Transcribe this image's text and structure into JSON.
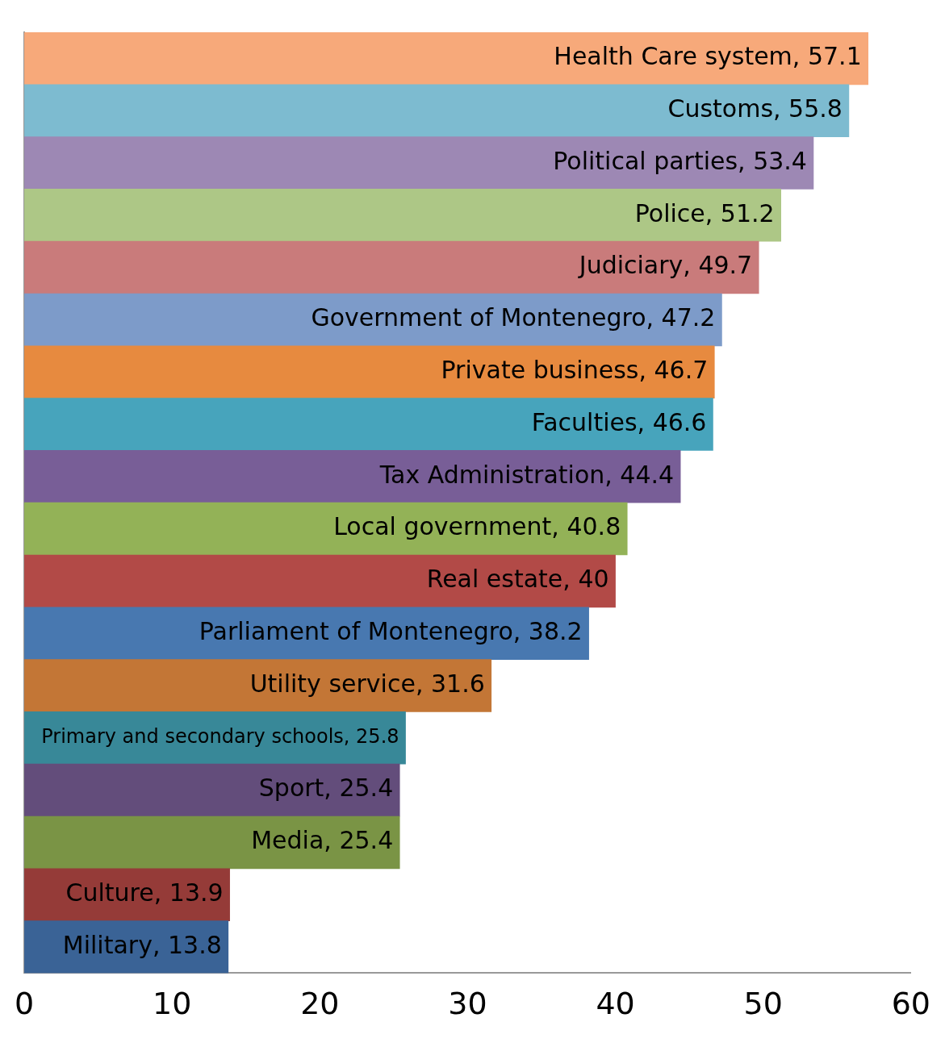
{
  "chart_data": {
    "type": "bar",
    "orientation": "horizontal",
    "categories": [
      "Health Care system",
      "Customs",
      "Political parties",
      "Police",
      "Judiciary",
      "Government of Montenegro",
      "Private business",
      "Faculties",
      "Tax Administration",
      "Local government",
      "Real estate",
      "Parliament of Montenegro",
      "Utility service",
      "Primary and secondary schools",
      "Sport",
      "Media",
      "Culture",
      "Military"
    ],
    "values": [
      57.1,
      55.8,
      53.4,
      51.2,
      49.7,
      47.2,
      46.7,
      46.6,
      44.4,
      40.8,
      40,
      38.2,
      31.6,
      25.8,
      25.4,
      25.4,
      13.9,
      13.8
    ],
    "value_labels": [
      ", 57.1",
      ", 55.8",
      ", 53.4",
      ", 51.2",
      ", 49.7",
      ", 47.2",
      ", 46.7",
      ", 46.6",
      ", 44.4",
      ", 40.8",
      ", 40",
      ", 38.2",
      ", 31.6",
      ", 25.8",
      ", 25.4",
      ", 25.4",
      ", 13.9",
      ", 13.8"
    ],
    "colors": [
      "#f7a97a",
      "#7dbbd0",
      "#9d88b4",
      "#adc786",
      "#c97b7b",
      "#7d9bc9",
      "#e78a3f",
      "#47a4bc",
      "#785e97",
      "#93b257",
      "#b24a47",
      "#4878b0",
      "#c37636",
      "#388898",
      "#634d7b",
      "#7a9445",
      "#953b38",
      "#3a6396"
    ],
    "xlim": [
      0,
      60
    ],
    "xticks": [
      0,
      10,
      20,
      30,
      40,
      50,
      60
    ],
    "grid": false,
    "legend": false
  }
}
